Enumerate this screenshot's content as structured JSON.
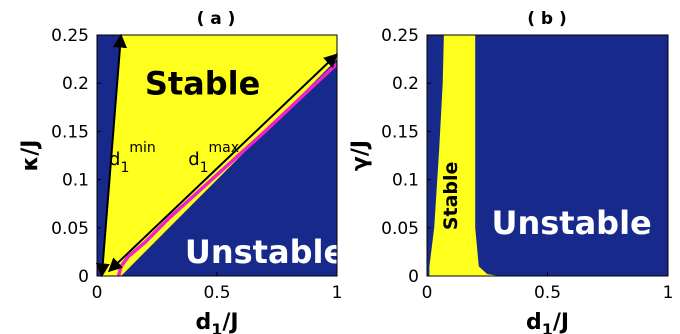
{
  "colors": {
    "unstable": "#172a8c",
    "stable": "#ffff1e",
    "curve": "#ee22cc",
    "ink": "#000000",
    "region_dark_text": "#000000",
    "region_light_text": "#ffffff"
  },
  "chart_data": [
    {
      "type": "area",
      "title": "( a )",
      "xlabel": {
        "main": "d",
        "sub": "1",
        "rest": "/J"
      },
      "ylabel": "κ/J",
      "xlim": [
        0,
        1
      ],
      "ylim": [
        0,
        0.25
      ],
      "x_ticks": [
        0,
        0.5,
        1
      ],
      "x_tick_labels": [
        "0",
        "0.5",
        "1"
      ],
      "y_ticks": [
        0,
        0.05,
        0.1,
        0.15,
        0.2,
        0.25
      ],
      "y_tick_labels": [
        "0",
        "0.05",
        "0.1",
        "0.15",
        "0.2",
        "0.25"
      ],
      "grid": false,
      "stable_region": {
        "left_boundary": [
          [
            0.02,
            0.0
          ],
          [
            0.1,
            0.25
          ]
        ],
        "right_boundary": [
          [
            0.1,
            0.0
          ],
          [
            1.0,
            0.225
          ]
        ]
      },
      "magenta_curve": [
        [
          0.09,
          0.0
        ],
        [
          0.1,
          0.01
        ],
        [
          0.13,
          0.02
        ],
        [
          0.2,
          0.035
        ],
        [
          0.3,
          0.06
        ],
        [
          0.5,
          0.105
        ],
        [
          0.7,
          0.15
        ],
        [
          0.9,
          0.197
        ],
        [
          1.0,
          0.22
        ]
      ],
      "arrows": [
        {
          "name": "d1-min",
          "from": [
            0.02,
            0.0
          ],
          "to": [
            0.1,
            0.25
          ],
          "label_main": "d",
          "label_sub": "1",
          "label_sup": "min",
          "label_at": [
            0.05,
            0.115
          ]
        },
        {
          "name": "d1-max",
          "from": [
            0.05,
            0.005
          ],
          "to": [
            1.0,
            0.23
          ],
          "label_main": "d",
          "label_sub": "1",
          "label_sup": "max",
          "label_at": [
            0.38,
            0.115
          ]
        }
      ],
      "region_labels": [
        {
          "text": "Stable",
          "at": [
            0.44,
            0.2
          ],
          "size": 32,
          "tone": "dark"
        },
        {
          "text": "Unstable",
          "at": [
            0.7,
            0.025
          ],
          "size": 32,
          "tone": "light"
        }
      ]
    },
    {
      "type": "area",
      "title": "( b )",
      "xlabel": {
        "main": "d",
        "sub": "1",
        "rest": "/J"
      },
      "ylabel": "γ/J",
      "xlim": [
        0,
        1
      ],
      "ylim": [
        0,
        0.25
      ],
      "x_ticks": [
        0,
        0.5,
        1
      ],
      "x_tick_labels": [
        "0",
        "0.5",
        "1"
      ],
      "y_ticks": [
        0,
        0.05,
        0.1,
        0.15,
        0.2,
        0.25
      ],
      "y_tick_labels": [
        "0",
        "0.05",
        "0.1",
        "0.15",
        "0.2",
        "0.25"
      ],
      "grid": false,
      "stable_region": {
        "left_boundary": [
          [
            0.01,
            0.0
          ],
          [
            0.01,
            0.01
          ],
          [
            0.03,
            0.05
          ],
          [
            0.05,
            0.13
          ],
          [
            0.065,
            0.2
          ],
          [
            0.07,
            0.25
          ]
        ],
        "right_boundary": [
          [
            0.3,
            0.0
          ],
          [
            0.25,
            0.002
          ],
          [
            0.215,
            0.01
          ],
          [
            0.2,
            0.05
          ],
          [
            0.2,
            0.25
          ]
        ]
      },
      "region_labels": [
        {
          "text": "Stable",
          "at": [
            0.125,
            0.09
          ],
          "size": 19,
          "tone": "dark",
          "rotate": -90
        },
        {
          "text": "Unstable",
          "at": [
            0.6,
            0.055
          ],
          "size": 32,
          "tone": "light"
        }
      ]
    }
  ]
}
